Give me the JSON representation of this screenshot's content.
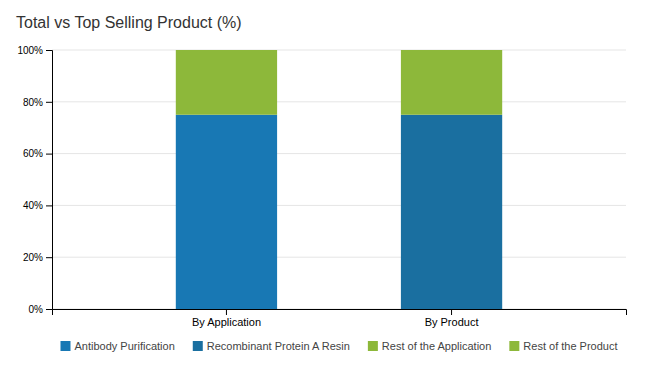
{
  "chart_data": {
    "type": "bar",
    "title": "Total vs Top Selling Product (%)",
    "categories": [
      "By Application",
      "By Product"
    ],
    "stacked": true,
    "series": [
      {
        "name": "Antibody Purification",
        "color": "#1878b4",
        "values": [
          75,
          null
        ]
      },
      {
        "name": "Recombinant Protein A Resin",
        "color": "#1a6fa0",
        "values": [
          null,
          75
        ]
      },
      {
        "name": "Rest of the Application",
        "color": "#8db83a",
        "values": [
          25,
          null
        ]
      },
      {
        "name": "Rest of the Product",
        "color": "#8db83a",
        "values": [
          null,
          25
        ]
      }
    ],
    "ylim": [
      0,
      100
    ],
    "yticks": [
      {
        "value": 0,
        "label": "0%"
      },
      {
        "value": 20,
        "label": "20%"
      },
      {
        "value": 40,
        "label": "40%"
      },
      {
        "value": 60,
        "label": "60%"
      },
      {
        "value": 80,
        "label": "80%"
      },
      {
        "value": 100,
        "label": "100%"
      }
    ],
    "grid": true,
    "legend": "bottom"
  }
}
